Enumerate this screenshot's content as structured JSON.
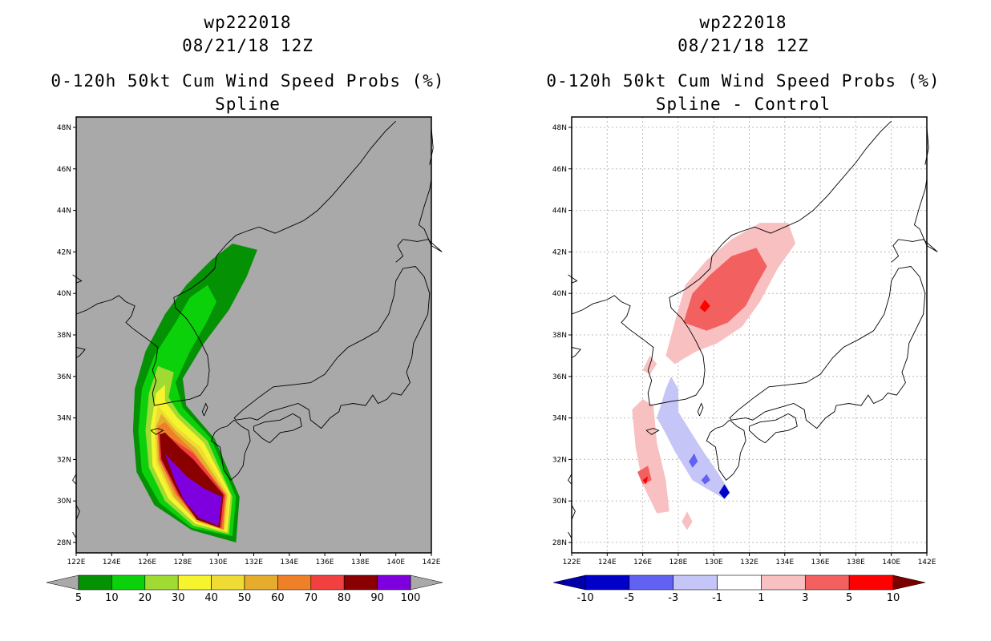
{
  "panels": [
    {
      "id": "spline",
      "title_line1": "wp222018",
      "title_line2": "08/21/18 12Z",
      "title_line3": "0-120h 50kt Cum Wind Speed Probs (%)",
      "title_line4": "Spline",
      "background": "#a9a9a9",
      "colorbar": {
        "labels": [
          "5",
          "10",
          "20",
          "30",
          "40",
          "50",
          "60",
          "70",
          "80",
          "90",
          "100"
        ],
        "colors": [
          "#049104",
          "#0bd10b",
          "#9fdb32",
          "#f6f42c",
          "#eedc34",
          "#e6ac2e",
          "#f08028",
          "#f24040",
          "#8a0000",
          "#7f00df"
        ],
        "end_colors": [
          "#a9a9a9",
          "#a9a9a9"
        ]
      }
    },
    {
      "id": "difference",
      "title_line1": "wp222018",
      "title_line2": "08/21/18 12Z",
      "title_line3": "0-120h 50kt Cum Wind Speed Probs (%)",
      "title_line4": "Spline - Control",
      "background": "#ffffff",
      "colorbar": {
        "labels": [
          "-10",
          "-5",
          "-3",
          "-1",
          "1",
          "3",
          "5",
          "10"
        ],
        "colors": [
          "#0000c8",
          "#6262f2",
          "#c5c5f7",
          "#ffffff",
          "#f8c0c0",
          "#f36060",
          "#ff0000"
        ],
        "end_colors": [
          "#0000aa",
          "#7a0000"
        ]
      }
    }
  ],
  "axes": {
    "lat_labels": [
      "48N",
      "46N",
      "44N",
      "42N",
      "40N",
      "38N",
      "36N",
      "34N",
      "32N",
      "30N",
      "28N"
    ],
    "lon_labels": [
      "122E",
      "124E",
      "126E",
      "128E",
      "130E",
      "132E",
      "134E",
      "136E",
      "138E",
      "140E",
      "142E"
    ]
  }
}
